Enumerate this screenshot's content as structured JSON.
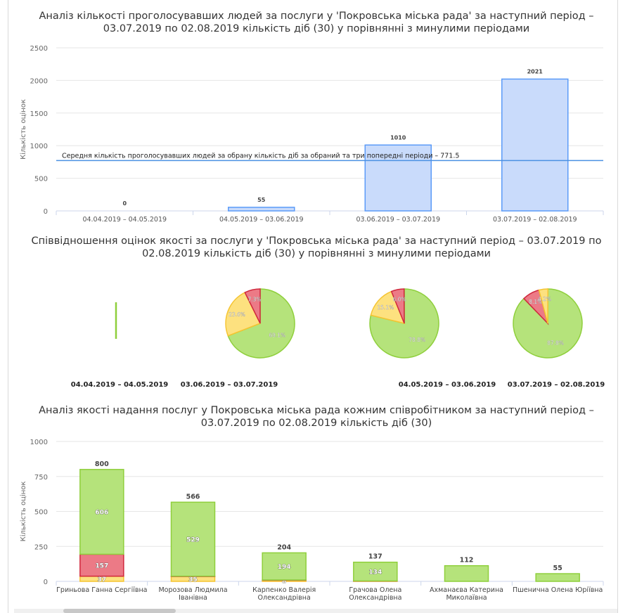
{
  "charts": {
    "votes": {
      "title_line1": "Аналіз кількості проголосувавших людей за послуги у 'Покровська міська рада' за наступний період –",
      "title_line2": "03.07.2019 по 02.08.2019 кількість діб (30) у порівнянні з минулими періодами"
    },
    "ratio": {
      "title_line1": "Співвідношення оцінок якості за послуги у 'Покровська міська рада' за наступний період – 03.07.2019 по",
      "title_line2": "02.08.2019 кількість діб (30) у порівнянні з минулими періодами"
    },
    "staff": {
      "title_line1": "Аналіз якості надання послуг у Покровська міська рада кожним співробітником за наступний період –",
      "title_line2": "03.07.2019 по 02.08.2019 кількість діб (30)"
    }
  },
  "chart_data": [
    {
      "type": "bar",
      "title": "Аналіз кількості проголосувавших людей за послуги у 'Покровська міська рада' за наступний період – 03.07.2019 по 02.08.2019 кількість діб (30) у порівнянні з минулими періодами",
      "ylabel": "Кількість оцінок",
      "categories": [
        "04.04.2019 – 04.05.2019",
        "04.05.2019 – 03.06.2019",
        "03.06.2019 – 03.07.2019",
        "03.07.2019 – 02.08.2019"
      ],
      "values": [
        0,
        55,
        1010,
        2021
      ],
      "data_labels": [
        "0",
        "55",
        "1010",
        "2021"
      ],
      "yticks": [
        "0",
        "500",
        "1000",
        "1500",
        "2000",
        "2500"
      ],
      "ylim": [
        0,
        2500
      ],
      "average_line": {
        "value": 771.5,
        "label": "Середня кількість проголосувавших людей за обрану кількість діб за обраний та три попередні періоди – 771.5"
      },
      "colors": {
        "bar_fill": "#c9dbfb",
        "bar_stroke": "#5b9bf8",
        "line": "#4a90e2"
      },
      "grid": true
    },
    {
      "type": "pie",
      "title": "Співвідношення оцінок якості за послуги у 'Покровська міська рада' за наступний період – 03.07.2019 по 02.08.2019 кількість діб (30) у порівнянні з минулими періодами",
      "pies": [
        {
          "label": "04.04.2019 – 04.05.2019",
          "slices": [
            {
              "value": 100,
              "color": "green",
              "text": ""
            }
          ]
        },
        {
          "label": "03.06.2019 – 03.07.2019",
          "slices": [
            {
              "value": 69.1,
              "color": "green",
              "text": "69.1%"
            },
            {
              "value": 23.6,
              "color": "yellow",
              "text": "23.6%"
            },
            {
              "value": 7.3,
              "color": "red",
              "text": "7.3%"
            }
          ]
        },
        {
          "label": "04.05.2019 – 03.06.2019",
          "slices": [
            {
              "value": 78.8,
              "color": "green",
              "text": "78.8%"
            },
            {
              "value": 15.1,
              "color": "yellow",
              "text": "15.1%"
            },
            {
              "value": 6.0,
              "color": "red",
              "text": "6.0%"
            }
          ]
        },
        {
          "label": "03.07.2019 – 02.08.2019",
          "slices": [
            {
              "value": 87.8,
              "color": "green",
              "text": "87.8%"
            },
            {
              "value": 8.1,
              "color": "red",
              "text": "8.1%"
            },
            {
              "value": 4.2,
              "color": "yellow",
              "text": "4.2%"
            }
          ]
        }
      ],
      "colors": {
        "green": "#b5e37b",
        "green_stroke": "#8fcf3c",
        "yellow": "#fde17f",
        "yellow_stroke": "#f5c431",
        "red": "#ec7a86",
        "red_stroke": "#d0283d"
      }
    },
    {
      "type": "bar",
      "stacked": true,
      "title": "Аналіз якості надання послуг у Покровська міська рада кожним співробітником за наступний період – 03.07.2019 по 02.08.2019 кількість діб (30)",
      "ylabel": "Кількість оцінок",
      "categories": [
        [
          "Гриньова Ганна Сергіївна"
        ],
        [
          "Морозова Людмила",
          "Іванівна"
        ],
        [
          "Карпенко Валерія",
          "Олександрівна"
        ],
        [
          "Грачова Олена",
          "Олександрівна"
        ],
        [
          "Ахманаєва Катерина",
          "Миколаївна"
        ],
        [
          "Пшенична Олена Юріївна"
        ]
      ],
      "totals": [
        800,
        566,
        204,
        137,
        112,
        55
      ],
      "series": [
        {
          "color": "yellow",
          "values": [
            37,
            35,
            8,
            2,
            0,
            0
          ],
          "labels": [
            "37",
            "35",
            "8",
            "",
            "",
            ""
          ]
        },
        {
          "color": "red",
          "values": [
            157,
            2,
            2,
            1,
            0,
            0
          ],
          "labels": [
            "157",
            "",
            "",
            "",
            "",
            ""
          ]
        },
        {
          "color": "green",
          "values": [
            606,
            529,
            194,
            134,
            112,
            55
          ],
          "labels": [
            "606",
            "529",
            "194",
            "134",
            "",
            ""
          ]
        }
      ],
      "yticks": [
        "0",
        "250",
        "500",
        "750",
        "1000"
      ],
      "ylim": [
        0,
        1000
      ],
      "colors": {
        "green": "#b5e37b",
        "green_stroke": "#8fcf3c",
        "yellow": "#fde17f",
        "yellow_stroke": "#f5c431",
        "red": "#ec7a86",
        "red_stroke": "#d0283d"
      },
      "grid": true
    }
  ]
}
